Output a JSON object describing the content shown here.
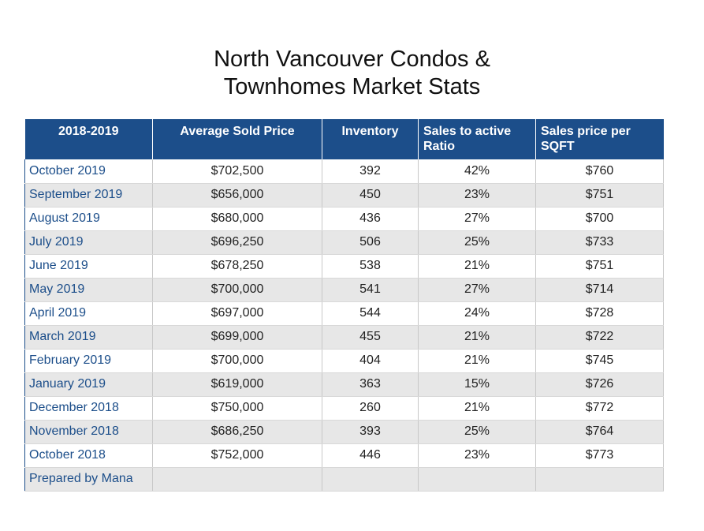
{
  "chart_data": {
    "type": "table",
    "title_lines": [
      "North Vancouver Condos &",
      "Townhomes Market Stats"
    ],
    "columns": [
      "2018-2019",
      "Average Sold Price",
      "Inventory",
      "Sales to active Ratio",
      "Sales price per SQFT"
    ],
    "rows": [
      [
        "October 2019",
        "$702,500",
        "392",
        "42%",
        "$760"
      ],
      [
        "September 2019",
        "$656,000",
        "450",
        "23%",
        "$751"
      ],
      [
        "August 2019",
        "$680,000",
        "436",
        "27%",
        "$700"
      ],
      [
        "July 2019",
        "$696,250",
        "506",
        "25%",
        "$733"
      ],
      [
        "June 2019",
        "$678,250",
        "538",
        "21%",
        "$751"
      ],
      [
        "May 2019",
        "$700,000",
        "541",
        "27%",
        "$714"
      ],
      [
        "April 2019",
        "$697,000",
        "544",
        "24%",
        "$728"
      ],
      [
        "March 2019",
        "$699,000",
        "455",
        "21%",
        "$722"
      ],
      [
        "February 2019",
        "$700,000",
        "404",
        "21%",
        "$745"
      ],
      [
        "January 2019",
        "$619,000",
        "363",
        "15%",
        "$726"
      ],
      [
        "December 2018",
        "$750,000",
        "260",
        "21%",
        "$772"
      ],
      [
        "November 2018",
        "$686,250",
        "393",
        "25%",
        "$764"
      ],
      [
        "October 2018",
        "$752,000",
        "446",
        "23%",
        "$773"
      ]
    ],
    "footer": "Prepared by Mana",
    "colors": {
      "header_background": "#1c4e8a",
      "header_text": "#ffffff",
      "month_text": "#1c4e8a",
      "stripe": "#e7e7e7"
    }
  }
}
